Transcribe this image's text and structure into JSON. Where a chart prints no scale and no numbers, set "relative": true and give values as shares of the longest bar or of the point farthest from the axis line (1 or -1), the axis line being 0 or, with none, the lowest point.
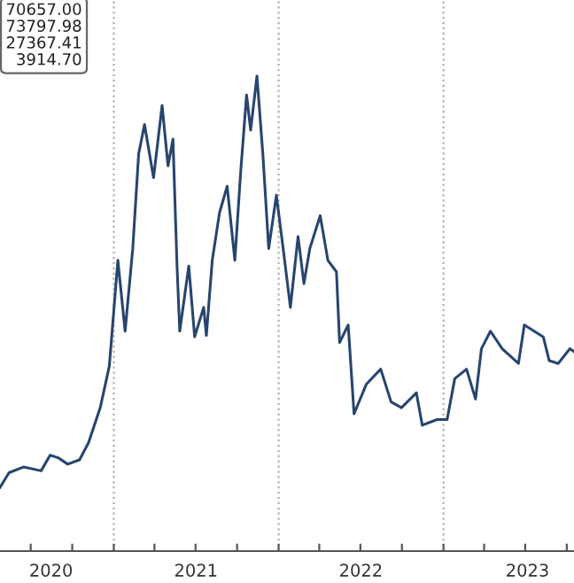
{
  "chart_data": {
    "type": "line",
    "relative": true,
    "x": [
      "2020-04-24",
      "2020-05-14",
      "2020-06-15",
      "2020-07-24",
      "2020-08-13",
      "2020-09-01",
      "2020-09-21",
      "2020-10-17",
      "2020-11-06",
      "2020-12-02",
      "2020-12-22",
      "2021-01-10",
      "2021-01-26",
      "2021-02-12",
      "2021-02-25",
      "2021-03-10",
      "2021-03-30",
      "2021-04-18",
      "2021-05-01",
      "2021-05-12",
      "2021-05-21",
      "2021-05-27",
      "2021-06-16",
      "2021-06-29",
      "2021-07-19",
      "2021-07-25",
      "2021-08-07",
      "2021-08-23",
      "2021-09-09",
      "2021-09-26",
      "2021-10-09",
      "2021-10-22",
      "2021-10-31",
      "2021-11-14",
      "2021-11-27",
      "2021-12-10",
      "2021-12-27",
      "2022-01-11",
      "2022-01-27",
      "2022-02-13",
      "2022-02-26",
      "2022-03-11",
      "2022-04-03",
      "2022-04-20",
      "2022-05-09",
      "2022-05-16",
      "2022-06-04",
      "2022-06-17",
      "2022-07-14",
      "2022-08-15",
      "2022-09-07",
      "2022-09-30",
      "2022-11-02",
      "2022-11-15",
      "2022-12-18",
      "2023-01-09",
      "2023-01-26",
      "2023-02-21",
      "2023-03-13",
      "2023-03-26",
      "2023-04-15",
      "2023-05-11",
      "2023-06-16",
      "2023-06-29",
      "2023-08-10",
      "2023-08-23",
      "2023-09-12",
      "2023-10-08",
      "2023-10-17"
    ],
    "series": [
      {
        "color": "#27456e",
        "values": [
          0.134,
          0.165,
          0.177,
          0.169,
          0.202,
          0.196,
          0.183,
          0.192,
          0.228,
          0.302,
          0.389,
          0.612,
          0.463,
          0.637,
          0.836,
          0.898,
          0.786,
          0.938,
          0.811,
          0.867,
          0.6,
          0.463,
          0.6,
          0.451,
          0.513,
          0.454,
          0.612,
          0.712,
          0.768,
          0.612,
          0.799,
          0.96,
          0.886,
          1.0,
          0.836,
          0.637,
          0.749,
          0.637,
          0.513,
          0.662,
          0.563,
          0.637,
          0.706,
          0.612,
          0.588,
          0.439,
          0.476,
          0.289,
          0.351,
          0.383,
          0.314,
          0.302,
          0.333,
          0.265,
          0.277,
          0.277,
          0.363,
          0.383,
          0.32,
          0.426,
          0.463,
          0.426,
          0.395,
          0.476,
          0.451,
          0.401,
          0.395,
          0.426,
          0.42
        ]
      }
    ],
    "xlim": [
      "2020-04-24",
      "2023-10-17"
    ],
    "xticks": [
      {
        "value": "2020-07-01",
        "label": null
      },
      {
        "value": "2020-10-01",
        "label": null
      },
      {
        "value": "2021-01-01",
        "label": null
      },
      {
        "value": "2021-04-01",
        "label": null
      },
      {
        "value": "2021-07-01",
        "label": null
      },
      {
        "value": "2021-10-01",
        "label": null
      },
      {
        "value": "2022-01-01",
        "label": null
      },
      {
        "value": "2022-04-01",
        "label": null
      },
      {
        "value": "2022-07-01",
        "label": null
      },
      {
        "value": "2022-10-01",
        "label": null
      },
      {
        "value": "2023-01-01",
        "label": null
      },
      {
        "value": "2023-04-01",
        "label": null
      },
      {
        "value": "2023-07-01",
        "label": null
      },
      {
        "value": "2023-10-01",
        "label": null
      },
      {
        "value": "2020-08-15",
        "label": "2020"
      },
      {
        "value": "2021-07-02",
        "label": "2021"
      },
      {
        "value": "2022-07-02",
        "label": "2022"
      },
      {
        "value": "2023-07-06",
        "label": "2023"
      }
    ],
    "ref_lines": [
      {
        "axis": "x",
        "value": "2021-01-01",
        "color": "#b0b0b0",
        "line_style": "dotted"
      },
      {
        "axis": "x",
        "value": "2022-01-01",
        "color": "#b0b0b0",
        "line_style": "dotted"
      },
      {
        "axis": "x",
        "value": "2023-01-01",
        "color": "#b0b0b0",
        "line_style": "dotted"
      }
    ],
    "annotations": [
      "70657.00",
      "73797.98",
      "27367.41",
      "3914.70"
    ],
    "tick_labels": "x",
    "line_style": "solid"
  }
}
